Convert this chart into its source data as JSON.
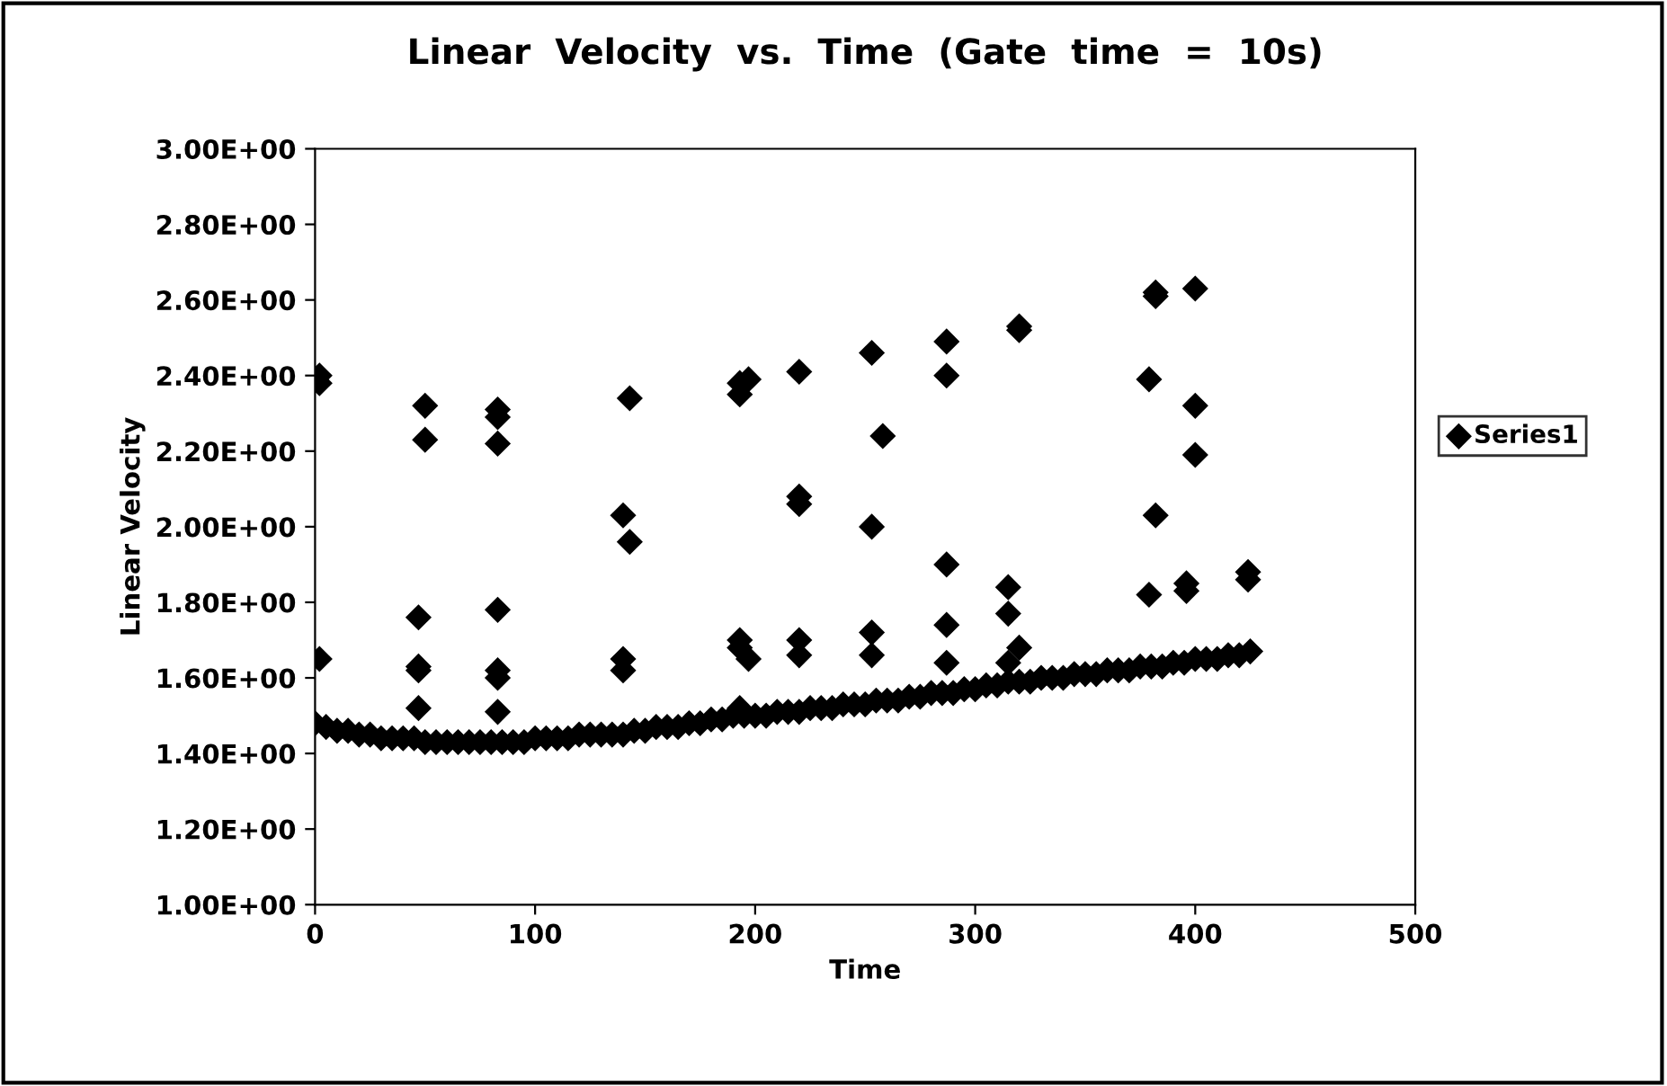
{
  "chart_data": {
    "type": "scatter",
    "title": "Linear  Velocity  vs.  Time  (Gate  time  =  10s)",
    "xlabel": "Time",
    "ylabel": "Linear Velocity",
    "xlim": [
      0,
      500
    ],
    "xticks": [
      0,
      100,
      200,
      300,
      400,
      500
    ],
    "ylim": [
      1.0,
      3.0
    ],
    "yticks": [
      {
        "value": 1.0,
        "label": "1.00E+00"
      },
      {
        "value": 1.2,
        "label": "1.20E+00"
      },
      {
        "value": 1.4,
        "label": "1.40E+00"
      },
      {
        "value": 1.6,
        "label": "1.60E+00"
      },
      {
        "value": 1.8,
        "label": "1.80E+00"
      },
      {
        "value": 2.0,
        "label": "2.00E+00"
      },
      {
        "value": 2.2,
        "label": "2.20E+00"
      },
      {
        "value": 2.4,
        "label": "2.40E+00"
      },
      {
        "value": 2.6,
        "label": "2.60E+00"
      },
      {
        "value": 2.8,
        "label": "2.80E+00"
      },
      {
        "value": 3.0,
        "label": "3.00E+00"
      }
    ],
    "grid": false,
    "legend": "right",
    "marker": "diamond",
    "series": [
      {
        "name": "Series1",
        "color": "#000000",
        "x": [
          0,
          5,
          10,
          15,
          20,
          25,
          30,
          35,
          40,
          45,
          50,
          55,
          60,
          65,
          70,
          75,
          80,
          85,
          90,
          95,
          100,
          105,
          110,
          115,
          120,
          125,
          130,
          135,
          140,
          145,
          150,
          155,
          160,
          165,
          170,
          175,
          180,
          185,
          190,
          195,
          200,
          205,
          210,
          215,
          220,
          225,
          230,
          235,
          240,
          245,
          250,
          255,
          260,
          265,
          270,
          275,
          280,
          285,
          290,
          295,
          300,
          305,
          310,
          315,
          320,
          325,
          330,
          335,
          340,
          345,
          350,
          355,
          360,
          365,
          370,
          375,
          380,
          385,
          390,
          395,
          400,
          405,
          410,
          415,
          420,
          425,
          2,
          2,
          2,
          47,
          47,
          47,
          47,
          50,
          50,
          83,
          83,
          83,
          83,
          83,
          83,
          83,
          140,
          140,
          140,
          143,
          143,
          193,
          193,
          193,
          193,
          193,
          197,
          197,
          220,
          220,
          220,
          220,
          220,
          253,
          253,
          253,
          253,
          258,
          287,
          287,
          287,
          287,
          287,
          315,
          315,
          315,
          320,
          320,
          320,
          379,
          379,
          382,
          382,
          382,
          396,
          396,
          400,
          400,
          400,
          424,
          424
        ],
        "values": [
          1.48,
          1.47,
          1.46,
          1.46,
          1.45,
          1.45,
          1.44,
          1.44,
          1.44,
          1.44,
          1.43,
          1.43,
          1.43,
          1.43,
          1.43,
          1.43,
          1.43,
          1.43,
          1.43,
          1.43,
          1.44,
          1.44,
          1.44,
          1.44,
          1.45,
          1.45,
          1.45,
          1.45,
          1.45,
          1.46,
          1.46,
          1.47,
          1.47,
          1.47,
          1.48,
          1.48,
          1.49,
          1.49,
          1.5,
          1.5,
          1.5,
          1.5,
          1.51,
          1.51,
          1.51,
          1.52,
          1.52,
          1.52,
          1.53,
          1.53,
          1.53,
          1.54,
          1.54,
          1.54,
          1.55,
          1.55,
          1.56,
          1.56,
          1.56,
          1.57,
          1.57,
          1.58,
          1.58,
          1.59,
          1.59,
          1.59,
          1.6,
          1.6,
          1.6,
          1.61,
          1.61,
          1.61,
          1.62,
          1.62,
          1.62,
          1.63,
          1.63,
          1.63,
          1.64,
          1.64,
          1.65,
          1.65,
          1.65,
          1.66,
          1.66,
          1.67,
          2.4,
          2.38,
          1.65,
          1.63,
          1.62,
          1.52,
          1.76,
          2.32,
          2.23,
          2.31,
          2.29,
          2.22,
          1.78,
          1.62,
          1.6,
          1.51,
          1.62,
          1.65,
          2.03,
          2.34,
          1.96,
          2.35,
          2.38,
          1.7,
          1.68,
          1.52,
          2.39,
          1.65,
          2.06,
          2.08,
          2.41,
          1.7,
          1.66,
          2.46,
          2.0,
          1.72,
          1.66,
          2.24,
          2.49,
          2.4,
          1.9,
          1.74,
          1.64,
          1.77,
          1.84,
          1.64,
          2.53,
          2.52,
          1.68,
          2.39,
          1.82,
          2.61,
          2.62,
          2.03,
          1.83,
          1.85,
          2.63,
          2.32,
          2.19,
          1.86,
          1.88
        ]
      }
    ]
  }
}
